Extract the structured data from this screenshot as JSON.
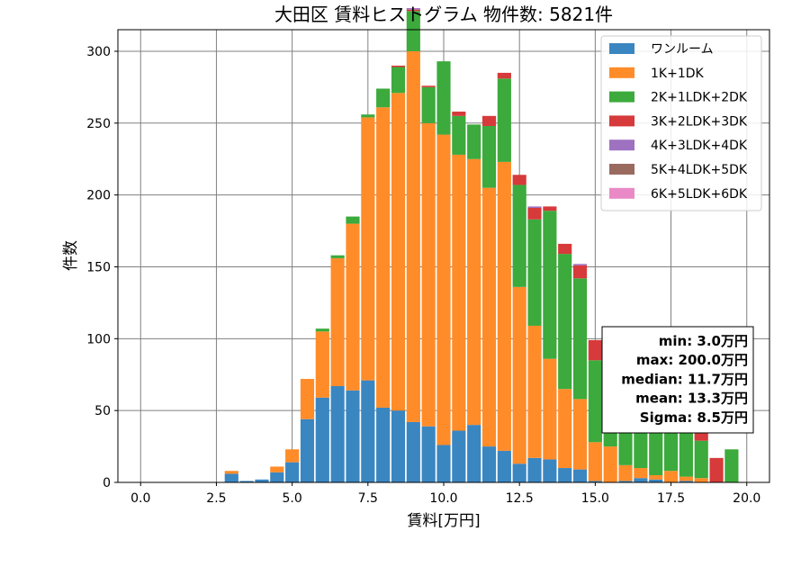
{
  "chart_data": {
    "type": "bar",
    "stacked": true,
    "title": "大田区 賃料ヒストグラム 物件数: 5821件",
    "xlabel": "賃料[万円]",
    "ylabel": "件数",
    "xlim": [
      -0.75,
      20.75
    ],
    "ylim": [
      0,
      315
    ],
    "xticks": [
      "0.0",
      "2.5",
      "5.0",
      "7.5",
      "10.0",
      "12.5",
      "15.0",
      "17.5",
      "20.0"
    ],
    "yticks": [
      "0",
      "50",
      "100",
      "150",
      "200",
      "250",
      "300"
    ],
    "grid": true,
    "legend_position": "top-right",
    "bin_width": 0.5,
    "x": [
      3.0,
      3.5,
      4.0,
      4.5,
      5.0,
      5.5,
      6.0,
      6.5,
      7.0,
      7.5,
      8.0,
      8.5,
      9.0,
      9.5,
      10.0,
      10.5,
      11.0,
      11.5,
      12.0,
      12.5,
      13.0,
      13.5,
      14.0,
      14.5,
      15.0,
      15.5,
      16.0,
      16.5,
      17.0,
      17.5,
      18.0,
      18.5,
      19.0,
      19.5
    ],
    "series": [
      {
        "name": "ワンルーム",
        "color": "#3a86c1",
        "values": [
          6,
          1,
          2,
          7,
          14,
          44,
          59,
          67,
          64,
          71,
          52,
          50,
          42,
          39,
          26,
          36,
          40,
          25,
          22,
          13,
          17,
          16,
          10,
          9,
          1,
          0,
          1,
          3,
          2,
          0,
          1,
          0,
          0,
          0
        ]
      },
      {
        "name": "1K+1DK",
        "color": "#ff8c29",
        "values": [
          2,
          0,
          0,
          4,
          9,
          28,
          46,
          89,
          116,
          183,
          209,
          221,
          258,
          211,
          216,
          192,
          185,
          180,
          201,
          123,
          92,
          70,
          55,
          49,
          27,
          25,
          11,
          7,
          3,
          8,
          3,
          3,
          0,
          0
        ]
      },
      {
        "name": "2K+1LDK+2DK",
        "color": "#3caa3c",
        "values": [
          0,
          0,
          0,
          0,
          0,
          0,
          2,
          2,
          5,
          2,
          13,
          18,
          28,
          25,
          51,
          27,
          24,
          43,
          58,
          71,
          74,
          103,
          94,
          84,
          57,
          62,
          45,
          44,
          45,
          32,
          32,
          26,
          0,
          23
        ]
      },
      {
        "name": "3K+2LDK+3DK",
        "color": "#d63a3a",
        "values": [
          0,
          0,
          0,
          0,
          0,
          0,
          0,
          0,
          0,
          0,
          0,
          1,
          1,
          1,
          0,
          3,
          0,
          7,
          4,
          7,
          8,
          3,
          7,
          9,
          14,
          14,
          10,
          7,
          8,
          10,
          7,
          9,
          17,
          0
        ]
      },
      {
        "name": "4K+3LDK+4DK",
        "color": "#9f71c1",
        "values": [
          0,
          0,
          0,
          0,
          0,
          0,
          0,
          0,
          0,
          0,
          0,
          0,
          1,
          0,
          0,
          0,
          0,
          0,
          0,
          0,
          1,
          0,
          0,
          1,
          0,
          1,
          0,
          0,
          0,
          0,
          0,
          0,
          0,
          0
        ]
      },
      {
        "name": "5K+4LDK+5DK",
        "color": "#9a6a5f",
        "values": [
          0,
          0,
          0,
          0,
          0,
          0,
          0,
          0,
          0,
          0,
          0,
          0,
          0,
          0,
          0,
          0,
          0,
          0,
          0,
          0,
          0,
          0,
          0,
          0,
          0,
          0,
          0,
          0,
          0,
          0,
          0,
          0,
          0,
          0
        ]
      },
      {
        "name": "6K+5LDK+6DK",
        "color": "#e98ac7",
        "values": [
          0,
          0,
          0,
          0,
          0,
          0,
          0,
          0,
          0,
          0,
          0,
          0,
          0,
          0,
          0,
          0,
          0,
          0,
          0,
          0,
          0,
          0,
          0,
          0,
          0,
          0,
          0,
          0,
          0,
          0,
          0,
          0,
          0,
          0
        ]
      }
    ],
    "stats_box": [
      "min: 3.0万円",
      "max: 200.0万円",
      "median: 11.7万円",
      "mean: 13.3万円",
      "Sigma: 8.5万円"
    ]
  }
}
